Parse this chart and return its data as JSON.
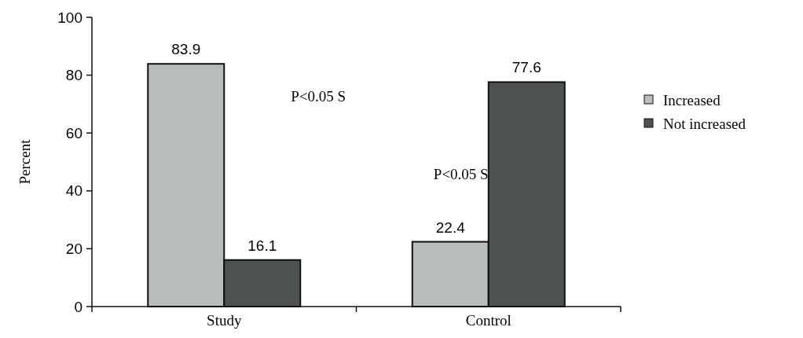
{
  "chart_data": {
    "type": "bar",
    "ylabel": "Percent",
    "categories": [
      "Study",
      "Control"
    ],
    "series": [
      {
        "name": "Increased",
        "color": "#b9bdb9",
        "values": [
          83.9,
          22.4
        ]
      },
      {
        "name": "Not increased",
        "color": "#4f534f",
        "values": [
          16.1,
          77.6
        ]
      }
    ],
    "ylim": [
      0,
      100
    ],
    "yticks": [
      0,
      20,
      40,
      60,
      80,
      100
    ],
    "data_labels": true,
    "legend": "right",
    "grid": false,
    "annotations": [
      "P<0.05 S",
      "P<0.05 S"
    ]
  }
}
